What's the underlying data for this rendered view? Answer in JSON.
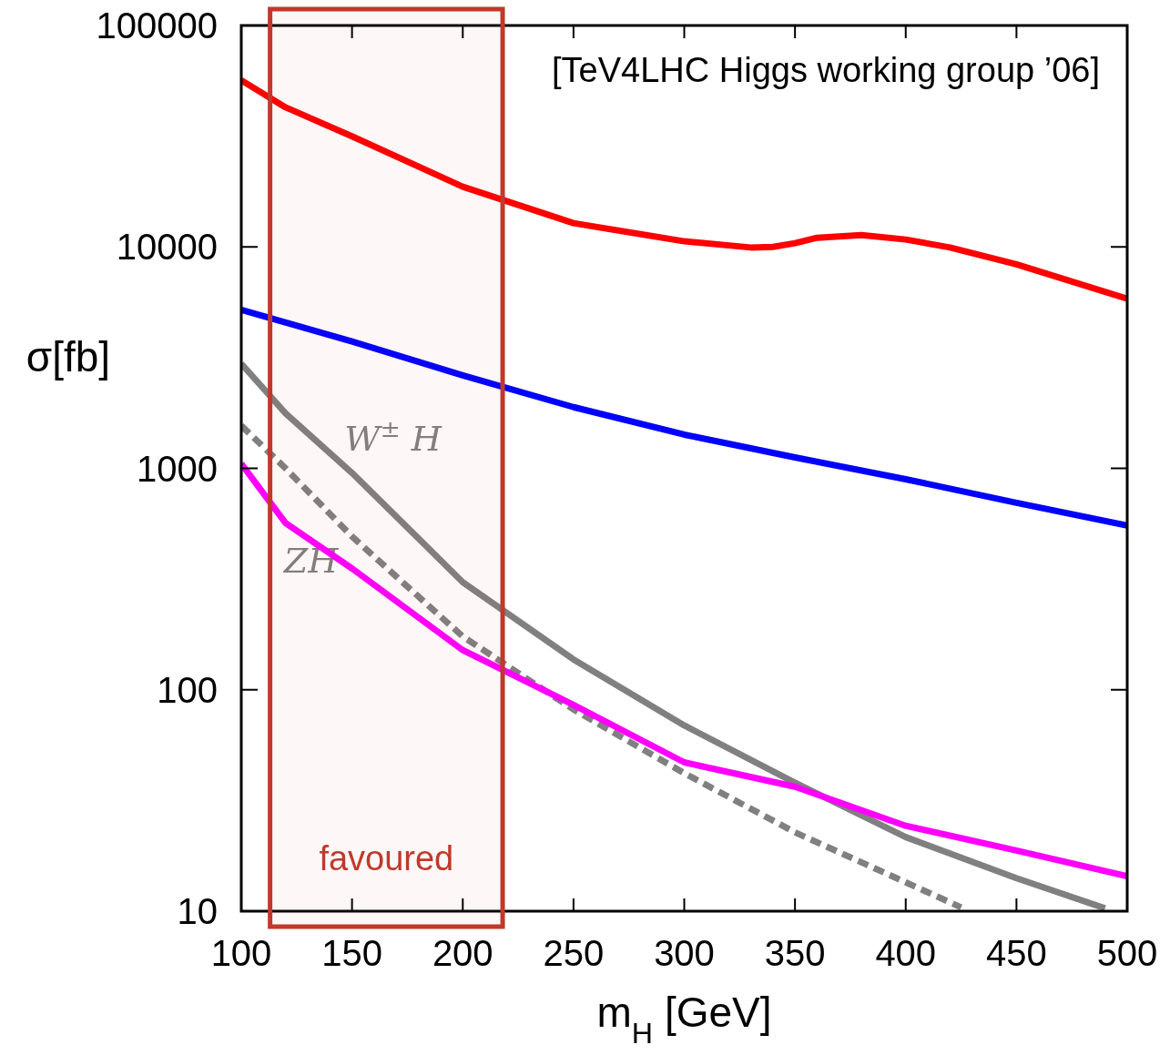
{
  "chart_data": {
    "type": "line",
    "xlabel": "m$_{H}$[GeV]",
    "ylabel": "σ[fb]",
    "log": "y",
    "grid": false,
    "legend": false,
    "xlim": [
      100,
      500
    ],
    "xticks": [
      100,
      150,
      200,
      250,
      300,
      350,
      400,
      450,
      500
    ],
    "ylim": [
      10,
      100000
    ],
    "yticks": [
      10,
      100,
      1000,
      10000,
      100000
    ],
    "line_style": "solid",
    "marker": "none",
    "series": [
      {
        "color": "#ff0000",
        "x": [
          100,
          120,
          150,
          200,
          250,
          300,
          330,
          340,
          350,
          360,
          380,
          400,
          420,
          450,
          500
        ],
        "values": [
          56600,
          42700,
          31600,
          18700,
          12800,
          10600,
          9940,
          10000,
          10400,
          11000,
          11300,
          10800,
          9940,
          8350,
          5840
        ]
      },
      {
        "color": "#0000ff",
        "x": [
          100,
          150,
          200,
          250,
          300,
          350,
          400,
          450,
          500
        ],
        "values": [
          5200,
          3740,
          2630,
          1890,
          1420,
          1120,
          893,
          699,
          552
        ]
      },
      {
        "name": "W$^{±}$H",
        "color": "#808080",
        "x": [
          100,
          120,
          150,
          175,
          200,
          250,
          300,
          350,
          400,
          450,
          490
        ],
        "values": [
          2970,
          1770,
          953,
          541,
          306,
          137,
          69,
          38,
          21.6,
          14.1,
          10.3
        ]
      },
      {
        "name": "ZH",
        "color": "#808080",
        "line_style": "dashed",
        "x": [
          100,
          120,
          150,
          200,
          250,
          300,
          350,
          400,
          425
        ],
        "values": [
          1560,
          1000,
          492,
          174,
          81.5,
          42,
          22.7,
          13.5,
          10.4
        ]
      },
      {
        "color": "#ff00ff",
        "x": [
          100,
          120,
          150,
          200,
          250,
          300,
          350,
          400,
          450,
          500
        ],
        "values": [
          1050,
          566,
          353,
          151,
          85.5,
          47,
          36.5,
          24.3,
          18.8,
          14.4
        ]
      }
    ],
    "bands": [
      {
        "axis": "x",
        "from": 113,
        "to": 218,
        "label": "favoured",
        "color": "#c0392b"
      }
    ],
    "annotations": [
      "[TeV4LHC Higgs working group ’06]"
    ]
  }
}
